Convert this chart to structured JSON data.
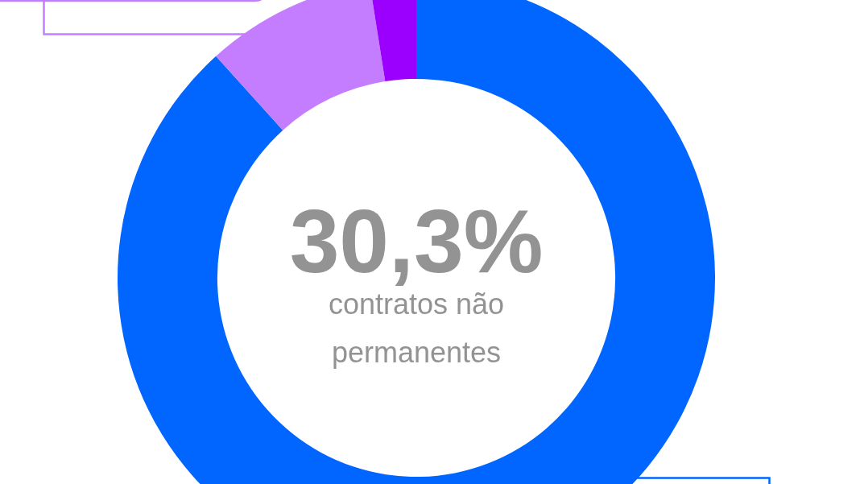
{
  "chart_data": {
    "type": "donut",
    "categories": [
      null,
      null,
      null
    ],
    "values": [
      88.3,
      9.2,
      2.5
    ],
    "colors": [
      "#0066ff",
      "#c47dff",
      "#9b00ff"
    ],
    "annotations": [
      "30,3%",
      "contratos não permanentes"
    ]
  }
}
